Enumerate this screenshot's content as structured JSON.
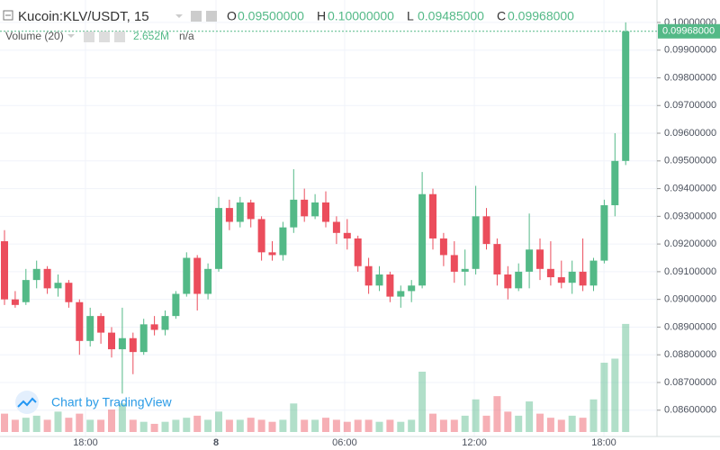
{
  "chart_data": {
    "type": "candlestick",
    "title": "Kucoin:KLV/USDT, 15",
    "legend_ohlc": [
      {
        "key": "O",
        "label": "0.09500000"
      },
      {
        "key": "H",
        "label": "0.10000000"
      },
      {
        "key": "L",
        "label": "0.09485000"
      },
      {
        "key": "C",
        "label": "0.09968000"
      }
    ],
    "volume_title": "Volume (20)",
    "volume_value": "2.652M",
    "volume_ma": "n/a",
    "watermark": "Chart by TradingView",
    "last_price_label": "0.09968000",
    "last_price": 0.09968,
    "up_color": "#53b987",
    "down_color": "#eb4d5c",
    "ylim": [
      0.08505,
      0.10081
    ],
    "yticks": [
      {
        "value": 0.086,
        "label": "0.08600000"
      },
      {
        "value": 0.087,
        "label": "0.08700000"
      },
      {
        "value": 0.088,
        "label": "0.08800000"
      },
      {
        "value": 0.089,
        "label": "0.08900000"
      },
      {
        "value": 0.09,
        "label": "0.09000000"
      },
      {
        "value": 0.091,
        "label": "0.09100000"
      },
      {
        "value": 0.092,
        "label": "0.09200000"
      },
      {
        "value": 0.093,
        "label": "0.09300000"
      },
      {
        "value": 0.094,
        "label": "0.09400000"
      },
      {
        "value": 0.095,
        "label": "0.09500000"
      },
      {
        "value": 0.096,
        "label": "0.09600000"
      },
      {
        "value": 0.097,
        "label": "0.09700000"
      },
      {
        "value": 0.098,
        "label": "0.09800000"
      },
      {
        "value": 0.099,
        "label": "0.09900000"
      },
      {
        "value": 0.1,
        "label": "0.10000000"
      }
    ],
    "xticks": [
      {
        "value": 7.56,
        "label": "18:00"
      },
      {
        "value": 19.75,
        "label": "8"
      },
      {
        "value": 31.76,
        "label": "06:00"
      },
      {
        "value": 43.87,
        "label": "12:00"
      },
      {
        "value": 55.97,
        "label": "18:00"
      }
    ],
    "volume_ylim": [
      0,
      10.6
    ],
    "grid": true,
    "series": [
      {
        "ohlc": [
          [
            0.0921,
            0.0925,
            0.0898,
            0.09
          ],
          [
            0.09,
            0.0903,
            0.0897,
            0.0898
          ],
          [
            0.0899,
            0.0911,
            0.0898,
            0.0907
          ],
          [
            0.0907,
            0.0914,
            0.0904,
            0.0911
          ],
          [
            0.0911,
            0.0912,
            0.0902,
            0.0904
          ],
          [
            0.0904,
            0.0909,
            0.0901,
            0.0906
          ],
          [
            0.0906,
            0.0907,
            0.0897,
            0.0899
          ],
          [
            0.0899,
            0.09,
            0.088,
            0.0885
          ],
          [
            0.0885,
            0.0897,
            0.0883,
            0.0894
          ],
          [
            0.0894,
            0.0895,
            0.0884,
            0.0888
          ],
          [
            0.0888,
            0.089,
            0.0879,
            0.0882
          ],
          [
            0.0882,
            0.0897,
            0.0866,
            0.0886
          ],
          [
            0.0886,
            0.0888,
            0.0873,
            0.0881
          ],
          [
            0.0881,
            0.0893,
            0.088,
            0.0891
          ],
          [
            0.0891,
            0.0894,
            0.0887,
            0.0889
          ],
          [
            0.0889,
            0.0896,
            0.0887,
            0.0894
          ],
          [
            0.0894,
            0.0903,
            0.0893,
            0.0902
          ],
          [
            0.0902,
            0.0917,
            0.0901,
            0.0915
          ],
          [
            0.0915,
            0.0916,
            0.0896,
            0.0902
          ],
          [
            0.0902,
            0.0913,
            0.09,
            0.0911
          ],
          [
            0.0911,
            0.0937,
            0.091,
            0.0933
          ],
          [
            0.0933,
            0.0936,
            0.0925,
            0.0928
          ],
          [
            0.0928,
            0.0937,
            0.0926,
            0.0935
          ],
          [
            0.0935,
            0.0936,
            0.0926,
            0.0929
          ],
          [
            0.0929,
            0.093,
            0.0914,
            0.0917
          ],
          [
            0.0917,
            0.0921,
            0.0914,
            0.0916
          ],
          [
            0.0916,
            0.0928,
            0.0914,
            0.0926
          ],
          [
            0.0926,
            0.0947,
            0.0924,
            0.0936
          ],
          [
            0.0936,
            0.094,
            0.0928,
            0.093
          ],
          [
            0.093,
            0.0938,
            0.0929,
            0.0935
          ],
          [
            0.0935,
            0.0939,
            0.0926,
            0.0928
          ],
          [
            0.0928,
            0.093,
            0.092,
            0.0924
          ],
          [
            0.0924,
            0.0929,
            0.0918,
            0.0922
          ],
          [
            0.0922,
            0.0923,
            0.091,
            0.0912
          ],
          [
            0.0912,
            0.0915,
            0.0902,
            0.0905
          ],
          [
            0.0905,
            0.0912,
            0.0903,
            0.0909
          ],
          [
            0.0909,
            0.091,
            0.0899,
            0.0901
          ],
          [
            0.0901,
            0.0905,
            0.0897,
            0.0903
          ],
          [
            0.0903,
            0.0907,
            0.0899,
            0.0905
          ],
          [
            0.0905,
            0.0946,
            0.0904,
            0.0938
          ],
          [
            0.0938,
            0.094,
            0.0918,
            0.0922
          ],
          [
            0.0922,
            0.0924,
            0.0912,
            0.0916
          ],
          [
            0.0916,
            0.0921,
            0.0906,
            0.091
          ],
          [
            0.091,
            0.0918,
            0.0905,
            0.0911
          ],
          [
            0.0911,
            0.0941,
            0.0909,
            0.093
          ],
          [
            0.093,
            0.0933,
            0.0918,
            0.092
          ],
          [
            0.092,
            0.0922,
            0.0905,
            0.0909
          ],
          [
            0.0909,
            0.0912,
            0.09,
            0.0904
          ],
          [
            0.0904,
            0.0913,
            0.0903,
            0.091
          ],
          [
            0.091,
            0.0931,
            0.0904,
            0.0918
          ],
          [
            0.0918,
            0.0922,
            0.0907,
            0.0911
          ],
          [
            0.0911,
            0.0921,
            0.0905,
            0.0908
          ],
          [
            0.0908,
            0.0914,
            0.0904,
            0.0906
          ],
          [
            0.0906,
            0.0914,
            0.0902,
            0.091
          ],
          [
            0.091,
            0.0922,
            0.0903,
            0.0905
          ],
          [
            0.0905,
            0.0915,
            0.0903,
            0.0914
          ],
          [
            0.0914,
            0.0936,
            0.0913,
            0.0934
          ],
          [
            0.0934,
            0.096,
            0.093,
            0.095
          ],
          [
            0.095,
            0.1,
            0.09485,
            0.09968
          ]
        ],
        "volume": [
          0.45,
          0.3,
          0.35,
          0.4,
          0.3,
          0.5,
          0.35,
          0.45,
          0.3,
          0.3,
          0.55,
          0.7,
          0.3,
          0.25,
          0.2,
          0.25,
          0.3,
          0.35,
          0.4,
          0.3,
          0.5,
          0.3,
          0.3,
          0.35,
          0.3,
          0.25,
          0.3,
          0.7,
          0.3,
          0.3,
          0.35,
          0.3,
          0.25,
          0.3,
          0.3,
          0.25,
          0.3,
          0.25,
          0.3,
          1.48,
          0.45,
          0.3,
          0.3,
          0.4,
          0.8,
          0.4,
          0.88,
          0.5,
          0.4,
          0.75,
          0.45,
          0.35,
          0.3,
          0.4,
          0.35,
          0.8,
          1.7,
          1.8,
          2.652
        ]
      }
    ]
  }
}
